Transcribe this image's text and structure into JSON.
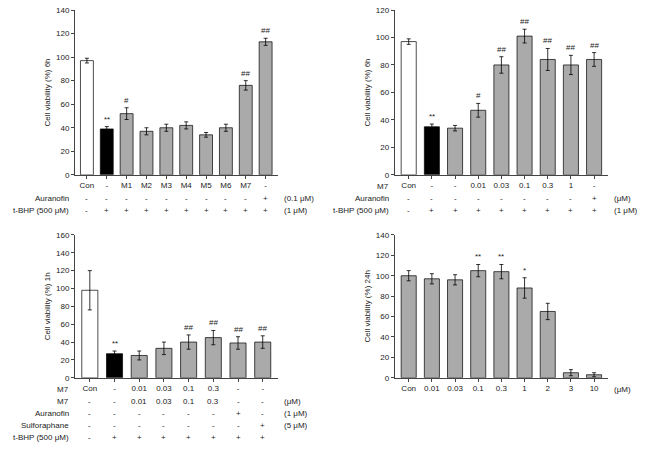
{
  "chart_data": [
    {
      "type": "bar",
      "ylabel": "Cell viability (%) 6h",
      "categories": [
        "Con",
        "-",
        "M1",
        "M2",
        "M3",
        "M4",
        "M5",
        "M6",
        "M7",
        "-"
      ],
      "values": [
        97,
        39,
        52,
        37,
        40,
        42,
        34,
        40,
        76,
        113
      ],
      "errors": [
        2,
        2,
        5,
        3,
        3,
        3,
        2,
        3,
        4,
        3
      ],
      "colors": [
        "white",
        "black",
        "#aaaaaa",
        "#aaaaaa",
        "#aaaaaa",
        "#aaaaaa",
        "#aaaaaa",
        "#aaaaaa",
        "#aaaaaa",
        "#aaaaaa"
      ],
      "annotations": [
        {
          "x": 1,
          "text": "**"
        },
        {
          "x": 2,
          "text": "#"
        },
        {
          "x": 8,
          "text": "##"
        },
        {
          "x": 9,
          "text": "##"
        }
      ],
      "ylim": [
        0,
        140
      ],
      "yticks": [
        0,
        20,
        40,
        60,
        80,
        100,
        120,
        140
      ],
      "grid": false,
      "table": [
        {
          "label": "Auranofin",
          "cells": [
            "-",
            "-",
            "-",
            "-",
            "-",
            "-",
            "-",
            "-",
            "-",
            "+"
          ],
          "note": "(0.1 μM)"
        },
        {
          "label": "t-BHP (500 μM)",
          "cells": [
            "-",
            "+",
            "+",
            "+",
            "+",
            "+",
            "+",
            "+",
            "+",
            "+"
          ],
          "note": "(1 μM)"
        }
      ]
    },
    {
      "type": "bar",
      "ylabel": "Cell viability (%) 6h",
      "categories": [
        "Con",
        "-",
        "-",
        "0.01",
        "0.03",
        "0.1",
        "0.3",
        "1",
        "-"
      ],
      "values": [
        97,
        35,
        34,
        47,
        80,
        101,
        84,
        80,
        84
      ],
      "errors": [
        2,
        2,
        2,
        5,
        6,
        5,
        8,
        7,
        5
      ],
      "colors": [
        "white",
        "black",
        "#aaaaaa",
        "#aaaaaa",
        "#aaaaaa",
        "#aaaaaa",
        "#aaaaaa",
        "#aaaaaa",
        "#aaaaaa"
      ],
      "annotations": [
        {
          "x": 1,
          "text": "**"
        },
        {
          "x": 3,
          "text": "#"
        },
        {
          "x": 4,
          "text": "##"
        },
        {
          "x": 5,
          "text": "##"
        },
        {
          "x": 6,
          "text": "##"
        },
        {
          "x": 7,
          "text": "##"
        },
        {
          "x": 8,
          "text": "##"
        }
      ],
      "ylim": [
        0,
        120
      ],
      "yticks": [
        0,
        20,
        40,
        60,
        80,
        100,
        120
      ],
      "grid": false,
      "category_row_label": "M7",
      "table": [
        {
          "label": "Auranofin",
          "cells": [
            "-",
            "-",
            "-",
            "-",
            "-",
            "-",
            "-",
            "-",
            "+"
          ],
          "note": "(μM)"
        },
        {
          "label": "t-BHP (500 μM)",
          "cells": [
            "-",
            "+",
            "+",
            "+",
            "+",
            "+",
            "+",
            "+",
            "+"
          ],
          "note": "(1 μM)"
        }
      ]
    },
    {
      "type": "bar",
      "ylabel": "Cell viability (%) 1h",
      "categories": [
        "Con",
        "-",
        "0.01",
        "0.03",
        "0.1",
        "0.3",
        "-",
        "-"
      ],
      "values": [
        98,
        27,
        25,
        33,
        40,
        45,
        39,
        40
      ],
      "errors": [
        22,
        3,
        5,
        7,
        8,
        8,
        7,
        7
      ],
      "colors": [
        "white",
        "black",
        "#aaaaaa",
        "#aaaaaa",
        "#aaaaaa",
        "#aaaaaa",
        "#aaaaaa",
        "#aaaaaa"
      ],
      "annotations": [
        {
          "x": 1,
          "text": "**"
        },
        {
          "x": 4,
          "text": "##"
        },
        {
          "x": 5,
          "text": "##"
        },
        {
          "x": 6,
          "text": "##"
        },
        {
          "x": 7,
          "text": "##"
        }
      ],
      "ylim": [
        0,
        160
      ],
      "yticks": [
        0,
        20,
        40,
        60,
        80,
        100,
        120,
        140,
        160
      ],
      "grid": false,
      "category_row_label": "M7",
      "table": [
        {
          "label": "M7",
          "cells": [
            "-",
            "-",
            "0.01",
            "0.03",
            "0.1",
            "0.3",
            "-",
            "-"
          ],
          "note": "(μM)"
        },
        {
          "label": "Auranofin",
          "cells": [
            "-",
            "-",
            "-",
            "-",
            "-",
            "-",
            "+",
            "-"
          ],
          "note": "(1 μM)"
        },
        {
          "label": "Sulforaphane",
          "cells": [
            "-",
            "-",
            "-",
            "-",
            "-",
            "-",
            "-",
            "+"
          ],
          "note": "(5 μM)"
        },
        {
          "label": "t-BHP (500 μM)",
          "cells": [
            "-",
            "+",
            "+",
            "+",
            "+",
            "+",
            "+",
            "+"
          ]
        }
      ]
    },
    {
      "type": "bar",
      "ylabel": "Cell viability (%) 24h",
      "categories": [
        "Con",
        "0.01",
        "0.03",
        "0.1",
        "0.3",
        "1",
        "2",
        "3",
        "10"
      ],
      "values": [
        100,
        97,
        96,
        105,
        104,
        88,
        65,
        5,
        3
      ],
      "errors": [
        5,
        5,
        5,
        6,
        7,
        10,
        8,
        3,
        2
      ],
      "colors": [
        "#aaaaaa",
        "#aaaaaa",
        "#aaaaaa",
        "#aaaaaa",
        "#aaaaaa",
        "#aaaaaa",
        "#aaaaaa",
        "#aaaaaa",
        "#aaaaaa"
      ],
      "annotations": [
        {
          "x": 3,
          "text": "**"
        },
        {
          "x": 4,
          "text": "**"
        },
        {
          "x": 5,
          "text": "*"
        }
      ],
      "ylim": [
        0,
        140
      ],
      "yticks": [
        0,
        20,
        40,
        60,
        80,
        100,
        120,
        140
      ],
      "grid": false,
      "category_row_note": "(μM)"
    }
  ]
}
